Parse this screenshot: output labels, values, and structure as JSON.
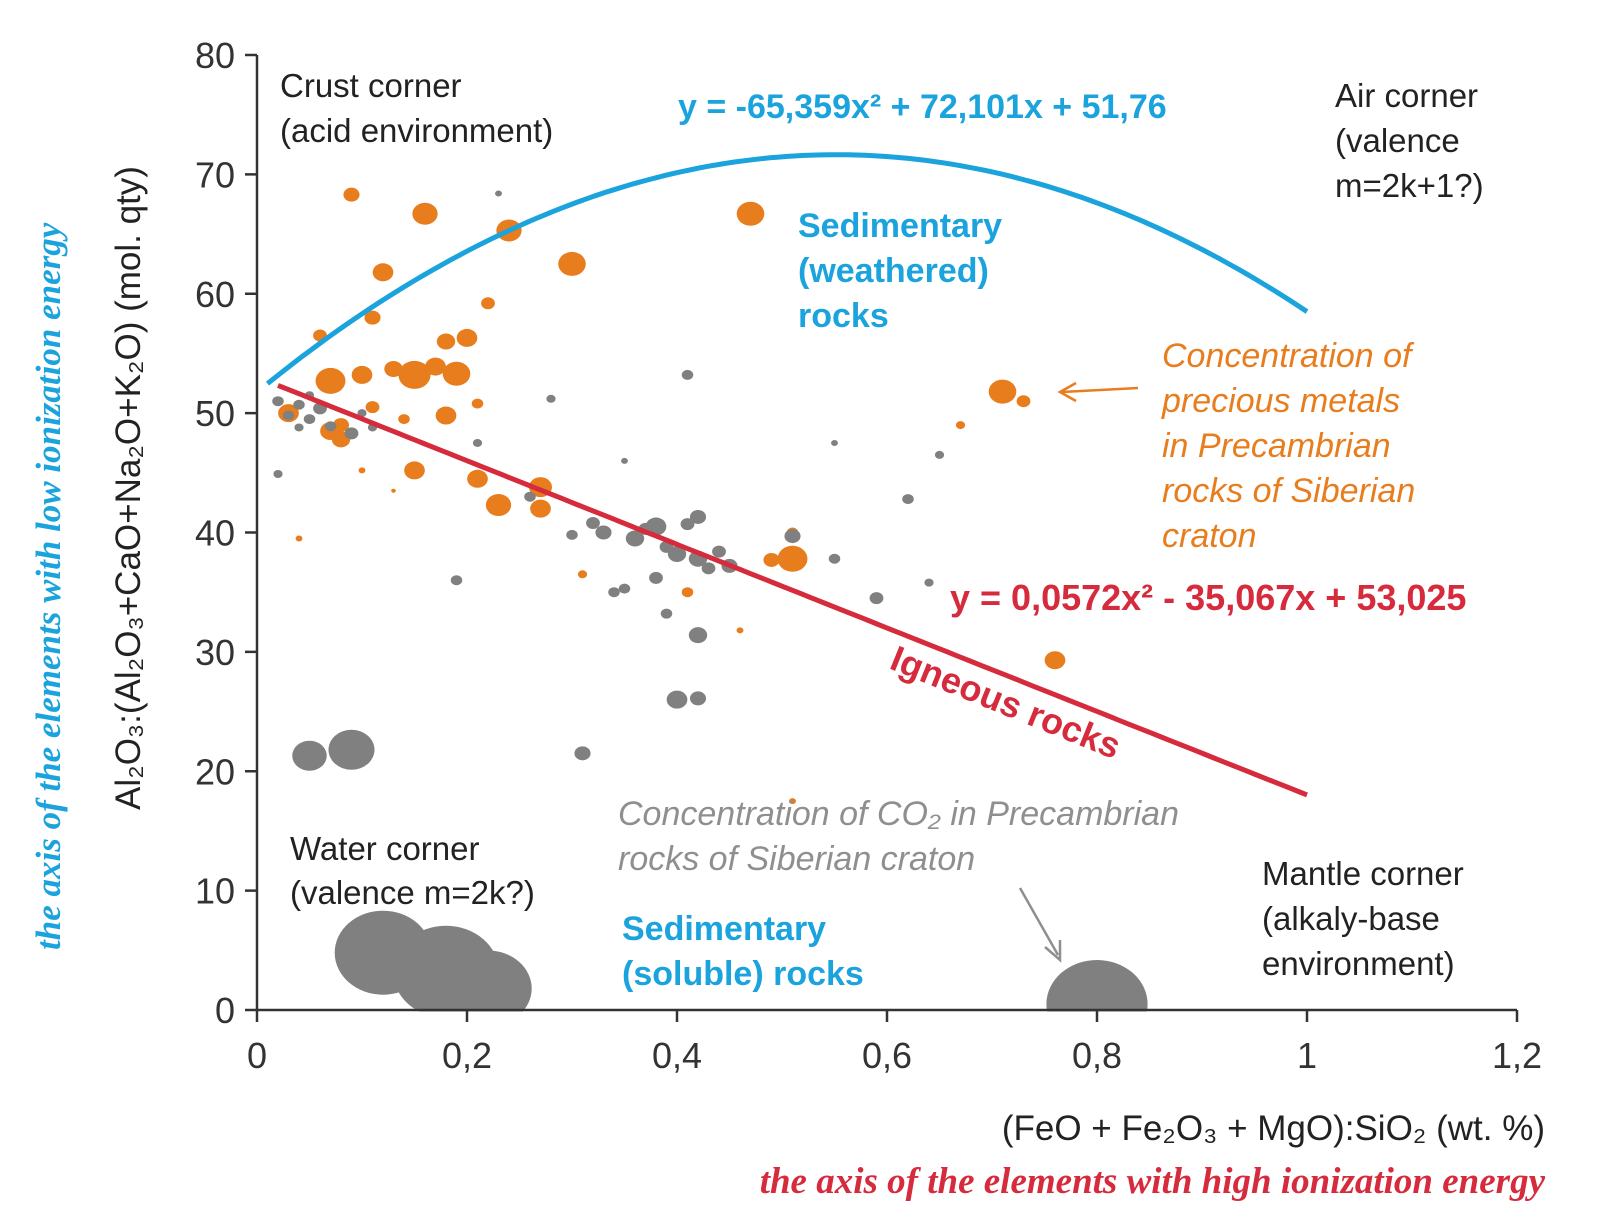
{
  "chart_data": {
    "type": "scatter",
    "xlim": [
      0,
      1.2
    ],
    "ylim": [
      0,
      80
    ],
    "x_ticks": [
      "0",
      "0,2",
      "0,4",
      "0,6",
      "0,8",
      "1",
      "1,2"
    ],
    "x_tick_values": [
      0,
      0.2,
      0.4,
      0.6,
      0.8,
      1.0,
      1.2
    ],
    "y_ticks": [
      "0",
      "10",
      "20",
      "30",
      "40",
      "50",
      "60",
      "70",
      "80"
    ],
    "y_tick_values": [
      0,
      10,
      20,
      30,
      40,
      50,
      60,
      70,
      80
    ],
    "xlabel": "(FeO + Fe₂O₃ + MgO):SiO₂ (wt. %)",
    "ylabel": "Al₂O₃:(Al₂O₃+CaO+Na₂O+K₂O) (mol. qty)",
    "x_axis_caption": "the axis of the elements with high ionization energy",
    "y_axis_caption": "the axis of the elements with low ionization energy",
    "colors": {
      "blue": "#1aa3dc",
      "red": "#d52b3c",
      "orange": "#e87d1e",
      "gray": "#808080"
    },
    "curves": [
      {
        "name": "Sedimentary (weathered) rocks",
        "equation": "y = -65,359x² + 72,101x + 51,76",
        "a": -65.359,
        "b": 72.101,
        "c": 51.76,
        "x_range": [
          0.01,
          1.0
        ],
        "color": "#1aa3dc"
      },
      {
        "name": "Igneous rocks",
        "equation": "y = 0,0572x² - 35,067x + 53,025",
        "a": 0.0572,
        "b": -35.067,
        "c": 53.025,
        "x_range": [
          0.02,
          1.0
        ],
        "color": "#d52b3c"
      }
    ],
    "series": [
      {
        "name": "Concentration of precious metals in Precambrian rocks of Siberian craton",
        "color": "#e87d1e",
        "points": [
          {
            "x": 0.09,
            "y": 68.3,
            "s": 7
          },
          {
            "x": 0.16,
            "y": 66.7,
            "s": 11
          },
          {
            "x": 0.24,
            "y": 65.3,
            "s": 11
          },
          {
            "x": 0.3,
            "y": 62.5,
            "s": 12
          },
          {
            "x": 0.47,
            "y": 66.7,
            "s": 12
          },
          {
            "x": 0.12,
            "y": 61.8,
            "s": 9
          },
          {
            "x": 0.22,
            "y": 59.2,
            "s": 6
          },
          {
            "x": 0.06,
            "y": 56.5,
            "s": 6
          },
          {
            "x": 0.11,
            "y": 58.0,
            "s": 7
          },
          {
            "x": 0.18,
            "y": 56.0,
            "s": 8
          },
          {
            "x": 0.2,
            "y": 56.3,
            "s": 9
          },
          {
            "x": 0.07,
            "y": 52.7,
            "s": 13
          },
          {
            "x": 0.1,
            "y": 53.2,
            "s": 9
          },
          {
            "x": 0.13,
            "y": 53.7,
            "s": 8
          },
          {
            "x": 0.15,
            "y": 53.2,
            "s": 14
          },
          {
            "x": 0.17,
            "y": 53.9,
            "s": 9
          },
          {
            "x": 0.19,
            "y": 53.3,
            "s": 12
          },
          {
            "x": 0.03,
            "y": 50.0,
            "s": 9
          },
          {
            "x": 0.08,
            "y": 49.0,
            "s": 7
          },
          {
            "x": 0.11,
            "y": 50.5,
            "s": 6
          },
          {
            "x": 0.14,
            "y": 49.5,
            "s": 5
          },
          {
            "x": 0.07,
            "y": 48.5,
            "s": 9
          },
          {
            "x": 0.08,
            "y": 47.8,
            "s": 8
          },
          {
            "x": 0.18,
            "y": 49.8,
            "s": 9
          },
          {
            "x": 0.21,
            "y": 50.8,
            "s": 5
          },
          {
            "x": 0.15,
            "y": 45.2,
            "s": 9
          },
          {
            "x": 0.21,
            "y": 44.5,
            "s": 9
          },
          {
            "x": 0.23,
            "y": 42.3,
            "s": 11
          },
          {
            "x": 0.27,
            "y": 42.0,
            "s": 9
          },
          {
            "x": 0.27,
            "y": 43.8,
            "s": 10
          },
          {
            "x": 0.49,
            "y": 37.7,
            "s": 7
          },
          {
            "x": 0.51,
            "y": 37.8,
            "s": 13
          },
          {
            "x": 0.51,
            "y": 40.0,
            "s": 5
          },
          {
            "x": 0.41,
            "y": 35.0,
            "s": 5
          },
          {
            "x": 0.46,
            "y": 31.8,
            "s": 3
          },
          {
            "x": 0.71,
            "y": 51.8,
            "s": 12
          },
          {
            "x": 0.73,
            "y": 51.0,
            "s": 6
          },
          {
            "x": 0.67,
            "y": 49.0,
            "s": 4
          },
          {
            "x": 0.76,
            "y": 29.3,
            "s": 9
          },
          {
            "x": 0.51,
            "y": 17.5,
            "s": 3
          },
          {
            "x": 0.31,
            "y": 36.5,
            "s": 4
          },
          {
            "x": 0.04,
            "y": 39.5,
            "s": 3
          },
          {
            "x": 0.1,
            "y": 45.2,
            "s": 3
          },
          {
            "x": 0.13,
            "y": 43.5,
            "s": 2
          }
        ]
      },
      {
        "name": "Concentration of CO₂ in Precambrian rocks of Siberian craton",
        "color": "#808080",
        "points": [
          {
            "x": 0.12,
            "y": 4.8,
            "s": 42
          },
          {
            "x": 0.18,
            "y": 3.2,
            "s": 46
          },
          {
            "x": 0.22,
            "y": 1.8,
            "s": 38
          },
          {
            "x": 0.8,
            "y": 0.5,
            "s": 44
          },
          {
            "x": 0.05,
            "y": 21.3,
            "s": 15
          },
          {
            "x": 0.09,
            "y": 21.8,
            "s": 20
          },
          {
            "x": 0.02,
            "y": 51.0,
            "s": 5
          },
          {
            "x": 0.03,
            "y": 49.8,
            "s": 5
          },
          {
            "x": 0.04,
            "y": 50.7,
            "s": 5
          },
          {
            "x": 0.05,
            "y": 51.5,
            "s": 4
          },
          {
            "x": 0.05,
            "y": 49.5,
            "s": 5
          },
          {
            "x": 0.06,
            "y": 50.4,
            "s": 6
          },
          {
            "x": 0.07,
            "y": 48.9,
            "s": 5
          },
          {
            "x": 0.09,
            "y": 48.3,
            "s": 6
          },
          {
            "x": 0.1,
            "y": 50.0,
            "s": 4
          },
          {
            "x": 0.11,
            "y": 48.8,
            "s": 4
          },
          {
            "x": 0.04,
            "y": 48.8,
            "s": 4
          },
          {
            "x": 0.02,
            "y": 44.9,
            "s": 4
          },
          {
            "x": 0.32,
            "y": 40.8,
            "s": 6
          },
          {
            "x": 0.33,
            "y": 40.0,
            "s": 7
          },
          {
            "x": 0.36,
            "y": 39.5,
            "s": 8
          },
          {
            "x": 0.37,
            "y": 40.3,
            "s": 6
          },
          {
            "x": 0.38,
            "y": 40.5,
            "s": 9
          },
          {
            "x": 0.39,
            "y": 38.8,
            "s": 6
          },
          {
            "x": 0.4,
            "y": 38.2,
            "s": 8
          },
          {
            "x": 0.42,
            "y": 37.8,
            "s": 8
          },
          {
            "x": 0.43,
            "y": 37.0,
            "s": 6
          },
          {
            "x": 0.44,
            "y": 38.4,
            "s": 6
          },
          {
            "x": 0.45,
            "y": 37.2,
            "s": 7
          },
          {
            "x": 0.41,
            "y": 40.7,
            "s": 6
          },
          {
            "x": 0.42,
            "y": 41.3,
            "s": 7
          },
          {
            "x": 0.3,
            "y": 39.8,
            "s": 5
          },
          {
            "x": 0.26,
            "y": 43.0,
            "s": 5
          },
          {
            "x": 0.38,
            "y": 36.2,
            "s": 6
          },
          {
            "x": 0.34,
            "y": 35.0,
            "s": 5
          },
          {
            "x": 0.35,
            "y": 35.3,
            "s": 5
          },
          {
            "x": 0.42,
            "y": 31.4,
            "s": 8
          },
          {
            "x": 0.4,
            "y": 26.0,
            "s": 9
          },
          {
            "x": 0.42,
            "y": 26.1,
            "s": 7
          },
          {
            "x": 0.31,
            "y": 21.5,
            "s": 7
          },
          {
            "x": 0.39,
            "y": 33.2,
            "s": 5
          },
          {
            "x": 0.19,
            "y": 36.0,
            "s": 5
          },
          {
            "x": 0.51,
            "y": 39.7,
            "s": 7
          },
          {
            "x": 0.55,
            "y": 37.8,
            "s": 5
          },
          {
            "x": 0.59,
            "y": 34.5,
            "s": 6
          },
          {
            "x": 0.62,
            "y": 42.8,
            "s": 5
          },
          {
            "x": 0.65,
            "y": 46.5,
            "s": 4
          },
          {
            "x": 0.41,
            "y": 53.2,
            "s": 5
          },
          {
            "x": 0.23,
            "y": 68.4,
            "s": 3
          },
          {
            "x": 0.21,
            "y": 47.5,
            "s": 4
          },
          {
            "x": 0.55,
            "y": 47.5,
            "s": 3
          },
          {
            "x": 0.64,
            "y": 35.8,
            "s": 4
          },
          {
            "x": 0.35,
            "y": 46.0,
            "s": 3
          },
          {
            "x": 0.28,
            "y": 51.2,
            "s": 4
          }
        ]
      }
    ],
    "annotations": {
      "crust_corner": [
        "Crust corner",
        "(acid environment)"
      ],
      "air_corner": [
        "Air corner",
        "(valence",
        "m=2k+1?)"
      ],
      "water_corner": [
        "Water corner",
        "(valence m=2k?)"
      ],
      "mantle_corner": [
        "Mantle corner",
        "(alkaly-base",
        "environment)"
      ],
      "sed_weathered": [
        "Sedimentary",
        "(weathered)",
        "rocks"
      ],
      "sed_soluble": [
        "Sedimentary",
        "(soluble) rocks"
      ],
      "igneous": "Igneous rocks",
      "precious": [
        "Concentration of",
        "precious metals",
        "in Precambrian",
        "rocks of Siberian",
        "craton"
      ],
      "co2": [
        "Concentration of CO₂ in Precambrian",
        "rocks of Siberian craton"
      ]
    }
  }
}
